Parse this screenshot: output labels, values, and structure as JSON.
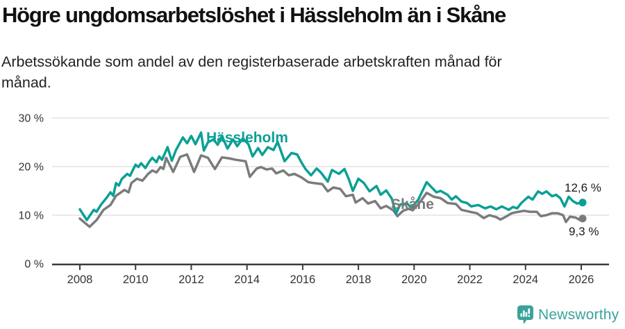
{
  "header": {
    "title": "Högre ungdomsarbetslöshet i Hässleholm än i Skåne",
    "subtitle": "Arbetssökande som andel av den registerbaserade arbetskraften månad för månad."
  },
  "chart_data": {
    "type": "line",
    "unit": "%",
    "grid": "horizontal",
    "legend_position": "inline-labels",
    "xlim": [
      2007.6,
      2027.0
    ],
    "ylim": [
      0,
      30
    ],
    "x_ticks": [
      2008,
      2010,
      2012,
      2014,
      2016,
      2018,
      2020,
      2022,
      2024,
      2026
    ],
    "y_ticks": [
      {
        "value": 30,
        "label": "30 %"
      },
      {
        "value": 20,
        "label": "20 %"
      },
      {
        "value": 10,
        "label": "10 %"
      },
      {
        "value": 0,
        "label": "0 %"
      }
    ],
    "series": [
      {
        "name": "Hässleholm",
        "color": "#0ba095",
        "end_value": 12.6,
        "end_label": "12,6 %",
        "points": [
          [
            2008.0,
            11.2
          ],
          [
            2008.25,
            9.0
          ],
          [
            2008.5,
            11.1
          ],
          [
            2008.6,
            10.7
          ],
          [
            2008.75,
            12.1
          ],
          [
            2008.95,
            13.5
          ],
          [
            2009.1,
            14.7
          ],
          [
            2009.2,
            14.0
          ],
          [
            2009.3,
            16.6
          ],
          [
            2009.4,
            16.1
          ],
          [
            2009.5,
            17.4
          ],
          [
            2009.7,
            18.5
          ],
          [
            2009.8,
            18.1
          ],
          [
            2010.0,
            20.4
          ],
          [
            2010.1,
            19.9
          ],
          [
            2010.2,
            20.7
          ],
          [
            2010.35,
            19.7
          ],
          [
            2010.5,
            21.1
          ],
          [
            2010.6,
            21.8
          ],
          [
            2010.75,
            20.9
          ],
          [
            2010.85,
            22.1
          ],
          [
            2010.95,
            21.4
          ],
          [
            2011.15,
            24.0
          ],
          [
            2011.3,
            21.2
          ],
          [
            2011.45,
            23.4
          ],
          [
            2011.7,
            26.0
          ],
          [
            2011.85,
            24.8
          ],
          [
            2012.0,
            26.3
          ],
          [
            2012.15,
            24.6
          ],
          [
            2012.35,
            27.0
          ],
          [
            2012.45,
            23.3
          ],
          [
            2012.6,
            25.0
          ],
          [
            2012.8,
            25.6
          ],
          [
            2012.95,
            24.5
          ],
          [
            2013.1,
            26.3
          ],
          [
            2013.3,
            23.7
          ],
          [
            2013.5,
            25.6
          ],
          [
            2013.65,
            24.2
          ],
          [
            2013.85,
            25.8
          ],
          [
            2014.05,
            24.6
          ],
          [
            2014.2,
            22.1
          ],
          [
            2014.4,
            23.8
          ],
          [
            2014.55,
            22.4
          ],
          [
            2014.75,
            24.0
          ],
          [
            2014.95,
            23.4
          ],
          [
            2015.1,
            25.1
          ],
          [
            2015.35,
            21.1
          ],
          [
            2015.6,
            22.8
          ],
          [
            2015.8,
            22.5
          ],
          [
            2015.95,
            20.9
          ],
          [
            2016.1,
            19.5
          ],
          [
            2016.3,
            18.2
          ],
          [
            2016.5,
            19.6
          ],
          [
            2016.65,
            18.8
          ],
          [
            2016.9,
            16.9
          ],
          [
            2017.05,
            19.3
          ],
          [
            2017.3,
            18.5
          ],
          [
            2017.5,
            19.5
          ],
          [
            2017.65,
            17.5
          ],
          [
            2017.8,
            15.0
          ],
          [
            2018.0,
            17.5
          ],
          [
            2018.2,
            16.6
          ],
          [
            2018.4,
            14.9
          ],
          [
            2018.65,
            16.0
          ],
          [
            2018.8,
            14.2
          ],
          [
            2019.0,
            15.1
          ],
          [
            2019.2,
            13.4
          ],
          [
            2019.35,
            10.3
          ],
          [
            2019.5,
            12.2
          ],
          [
            2019.75,
            12.4
          ],
          [
            2019.9,
            11.5
          ],
          [
            2020.15,
            13.2
          ],
          [
            2020.45,
            16.8
          ],
          [
            2020.6,
            15.9
          ],
          [
            2020.8,
            14.7
          ],
          [
            2020.95,
            15.0
          ],
          [
            2021.2,
            14.2
          ],
          [
            2021.35,
            13.2
          ],
          [
            2021.5,
            13.9
          ],
          [
            2021.7,
            12.8
          ],
          [
            2021.9,
            12.5
          ],
          [
            2022.05,
            11.8
          ],
          [
            2022.3,
            12.1
          ],
          [
            2022.55,
            11.4
          ],
          [
            2022.75,
            11.8
          ],
          [
            2022.95,
            11.2
          ],
          [
            2023.15,
            11.8
          ],
          [
            2023.4,
            11.1
          ],
          [
            2023.55,
            11.7
          ],
          [
            2023.7,
            11.4
          ],
          [
            2023.85,
            12.5
          ],
          [
            2024.1,
            13.8
          ],
          [
            2024.25,
            13.2
          ],
          [
            2024.45,
            14.9
          ],
          [
            2024.6,
            14.4
          ],
          [
            2024.75,
            14.9
          ],
          [
            2024.95,
            13.9
          ],
          [
            2025.1,
            14.2
          ],
          [
            2025.25,
            13.5
          ],
          [
            2025.4,
            11.8
          ],
          [
            2025.55,
            13.8
          ],
          [
            2025.7,
            12.9
          ],
          [
            2025.85,
            12.4
          ],
          [
            2026.05,
            12.6
          ]
        ]
      },
      {
        "name": "Skåne",
        "color": "#7b7b7b",
        "end_value": 9.3,
        "end_label": "9,3 %",
        "points": [
          [
            2008.0,
            9.3
          ],
          [
            2008.35,
            7.6
          ],
          [
            2008.6,
            9.0
          ],
          [
            2008.85,
            11.1
          ],
          [
            2009.1,
            12.1
          ],
          [
            2009.3,
            14.0
          ],
          [
            2009.45,
            14.6
          ],
          [
            2009.6,
            15.2
          ],
          [
            2009.75,
            14.7
          ],
          [
            2009.85,
            16.6
          ],
          [
            2010.05,
            17.5
          ],
          [
            2010.25,
            17.1
          ],
          [
            2010.45,
            18.5
          ],
          [
            2010.6,
            19.2
          ],
          [
            2010.75,
            18.8
          ],
          [
            2010.9,
            19.9
          ],
          [
            2011.0,
            19.5
          ],
          [
            2011.1,
            21.8
          ],
          [
            2011.35,
            18.9
          ],
          [
            2011.6,
            22.0
          ],
          [
            2011.85,
            22.5
          ],
          [
            2012.1,
            18.9
          ],
          [
            2012.35,
            22.3
          ],
          [
            2012.6,
            21.8
          ],
          [
            2012.85,
            19.5
          ],
          [
            2013.1,
            21.9
          ],
          [
            2013.35,
            21.7
          ],
          [
            2013.6,
            21.4
          ],
          [
            2013.95,
            21.1
          ],
          [
            2014.1,
            17.9
          ],
          [
            2014.35,
            19.6
          ],
          [
            2014.5,
            19.9
          ],
          [
            2014.7,
            19.4
          ],
          [
            2014.9,
            19.6
          ],
          [
            2015.05,
            18.6
          ],
          [
            2015.3,
            19.2
          ],
          [
            2015.5,
            18.2
          ],
          [
            2015.7,
            18.5
          ],
          [
            2015.95,
            17.8
          ],
          [
            2016.2,
            16.8
          ],
          [
            2016.4,
            16.6
          ],
          [
            2016.7,
            16.4
          ],
          [
            2016.9,
            14.9
          ],
          [
            2017.1,
            15.7
          ],
          [
            2017.35,
            15.4
          ],
          [
            2017.55,
            13.9
          ],
          [
            2017.8,
            14.2
          ],
          [
            2017.9,
            12.6
          ],
          [
            2018.15,
            13.5
          ],
          [
            2018.35,
            12.4
          ],
          [
            2018.6,
            12.9
          ],
          [
            2018.8,
            11.4
          ],
          [
            2019.0,
            11.9
          ],
          [
            2019.25,
            11.0
          ],
          [
            2019.4,
            9.8
          ],
          [
            2019.6,
            10.9
          ],
          [
            2019.8,
            11.3
          ],
          [
            2019.95,
            11.0
          ],
          [
            2020.2,
            12.6
          ],
          [
            2020.45,
            14.6
          ],
          [
            2020.7,
            13.8
          ],
          [
            2020.95,
            13.5
          ],
          [
            2021.2,
            12.5
          ],
          [
            2021.5,
            12.3
          ],
          [
            2021.7,
            11.1
          ],
          [
            2022.0,
            10.7
          ],
          [
            2022.25,
            10.4
          ],
          [
            2022.5,
            9.4
          ],
          [
            2022.7,
            10.0
          ],
          [
            2022.95,
            9.6
          ],
          [
            2023.1,
            9.1
          ],
          [
            2023.3,
            9.7
          ],
          [
            2023.5,
            10.4
          ],
          [
            2023.75,
            10.7
          ],
          [
            2023.95,
            10.9
          ],
          [
            2024.15,
            10.7
          ],
          [
            2024.4,
            10.7
          ],
          [
            2024.55,
            9.8
          ],
          [
            2024.75,
            10.0
          ],
          [
            2024.95,
            10.4
          ],
          [
            2025.15,
            10.4
          ],
          [
            2025.35,
            10.0
          ],
          [
            2025.45,
            8.6
          ],
          [
            2025.6,
            9.7
          ],
          [
            2025.8,
            9.5
          ],
          [
            2025.95,
            9.0
          ],
          [
            2026.05,
            9.3
          ]
        ]
      }
    ],
    "colors": {
      "gridline": "#e2e2e2",
      "axis": "#3a3a3a",
      "tick_label": "#333333"
    }
  },
  "footer": {
    "brand": "Newsworthy",
    "brand_color": "#3aa29c"
  }
}
